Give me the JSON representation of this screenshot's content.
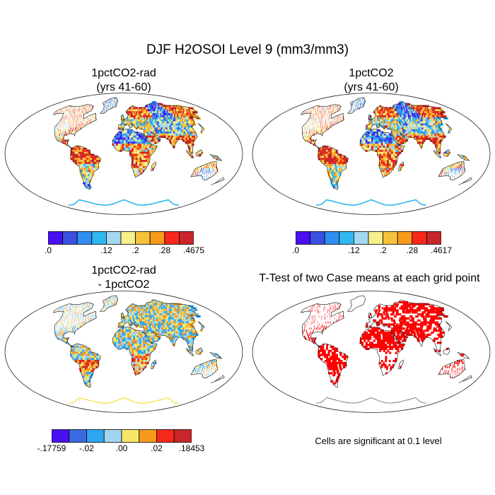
{
  "main_title": "DJF H2OSOI Level 9 (mm3/mm3)",
  "panels": [
    {
      "title_line1": "1pctCO2-rad",
      "title_line2": "(yrs 41-60)"
    },
    {
      "title_line1": "1pctCO2",
      "title_line2": "(yrs 41-60)"
    },
    {
      "title_line1": "1pctCO2-rad",
      "title_line2": "- 1pctCO2"
    },
    {
      "title_line1": "T-Test of two Case means at each grid point",
      "title_line2": ""
    }
  ],
  "colorbars": {
    "abs_colors": [
      "#4a0ff0",
      "#3a50e0",
      "#2f8ef0",
      "#2fb7f0",
      "#a4d7f0",
      "#f7f08a",
      "#f7c23a",
      "#f79a1a",
      "#f5281a",
      "#c8262b"
    ],
    "diff_colors": [
      "#4a0ff0",
      "#3a6ae0",
      "#2fa6f0",
      "#9fd5f0",
      "#f7e56a",
      "#f79a1a",
      "#f5281a",
      "#c8262b"
    ],
    "cb1_labels": [
      ".0",
      ".12",
      ".2",
      ".28",
      ".4675"
    ],
    "cb2_labels": [
      ".0",
      ".12",
      ".2",
      ".28",
      ".4617"
    ],
    "cb3_labels": [
      "-.17759",
      "-.02",
      ".00",
      ".02",
      ".18453"
    ]
  },
  "significance_note": "Cells are significant at 0.1 level",
  "significance_color": "#ff0000"
}
